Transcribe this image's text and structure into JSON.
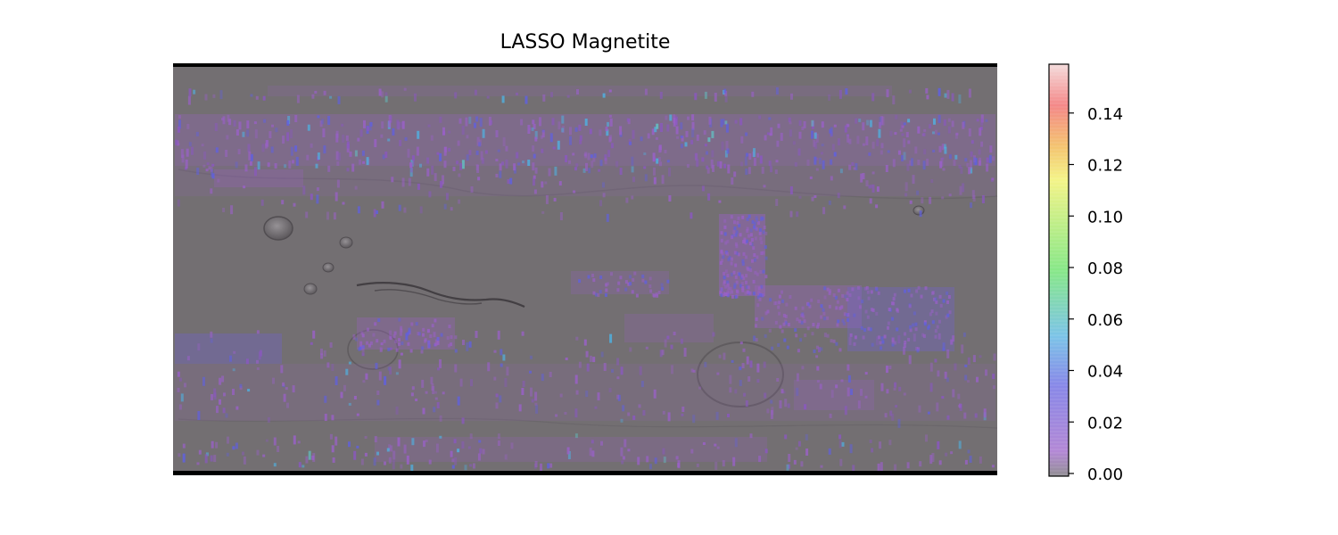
{
  "chart_data": {
    "type": "heatmap",
    "title": "LASSO Magnetite",
    "xlabel": "",
    "ylabel": "",
    "colorbar": {
      "vmin": 0.0,
      "vmax": 0.16,
      "ticks": [
        0.0,
        0.02,
        0.04,
        0.06,
        0.08,
        0.1,
        0.12,
        0.14
      ],
      "tick_labels": [
        "0.00",
        "0.02",
        "0.04",
        "0.06",
        "0.08",
        "0.10",
        "0.12",
        "0.14"
      ],
      "colormap": "gist_rainbow-like (grey, purple, blue, cyan, green, yellow, orange, red, pink)",
      "colors": [
        "#6e6a70",
        "#9a60c8",
        "#6060e0",
        "#50b0e0",
        "#60e060",
        "#f0f060",
        "#f0b040",
        "#f06060",
        "#f0d0d0"
      ]
    },
    "basemap": "shaded-relief global map (grey)",
    "basemap_color": "#736f72",
    "grid": false
  }
}
